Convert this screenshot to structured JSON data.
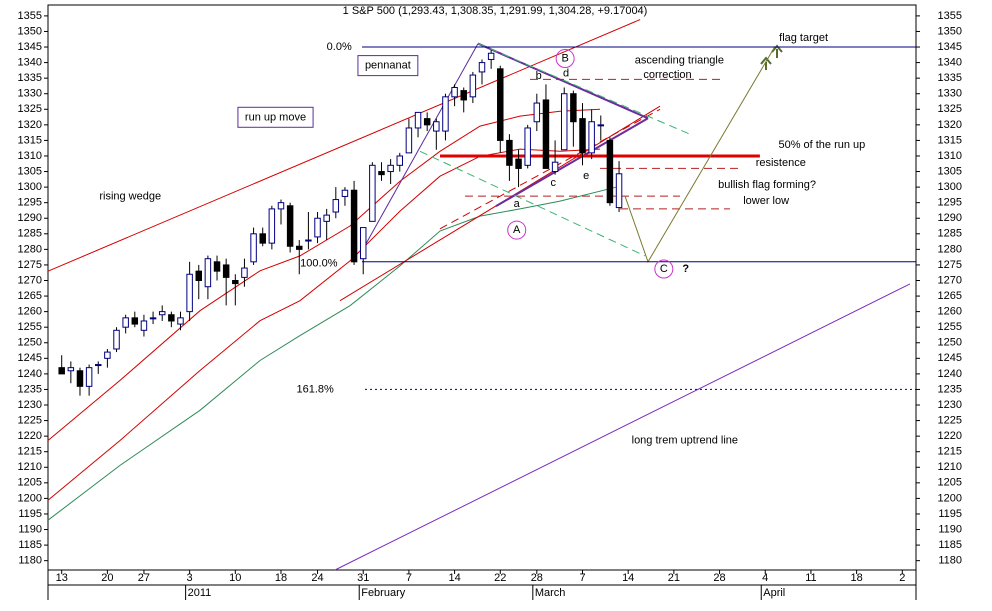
{
  "chart_data": {
    "type": "candlestick",
    "title": "1 S&P 500 (1,293.43, 1,308.35, 1,291.99, 1,304.28, +9.17004)",
    "x": [
      0,
      1,
      2,
      3,
      4,
      5,
      6,
      7,
      8,
      9,
      10,
      11,
      12,
      13,
      14,
      15,
      16,
      17,
      18,
      19,
      20,
      21,
      22,
      23,
      24,
      25,
      26,
      27,
      28,
      29,
      30,
      31,
      32,
      33,
      34,
      35,
      36,
      37,
      38,
      39,
      40,
      41,
      42,
      43,
      44,
      45,
      46,
      47,
      48,
      49,
      50,
      51,
      52,
      53,
      54,
      55,
      56,
      57,
      58,
      59,
      60,
      61
    ],
    "open": [
      1242,
      1241,
      1241,
      1236,
      1243,
      1245,
      1248,
      1255,
      1258,
      1254,
      1258,
      1259,
      1259,
      1256,
      1260,
      1273,
      1268,
      1276,
      1275,
      1270,
      1271,
      1276,
      1285,
      1282,
      1293,
      1294,
      1281,
      1283,
      1284,
      1289,
      1292,
      1297,
      1299,
      1277,
      1289,
      1305,
      1305,
      1307,
      1311,
      1319,
      1322,
      1318,
      1318,
      1329,
      1331,
      1329,
      1337,
      1341,
      1338,
      1315,
      1309,
      1307,
      1321,
      1328,
      1305,
      1312,
      1330,
      1322,
      1311,
      1320,
      1315,
      1293.43
    ],
    "high": [
      1246,
      1244,
      1242,
      1243,
      1244,
      1248,
      1255,
      1259,
      1260,
      1259,
      1260,
      1262,
      1260,
      1260,
      1276,
      1275,
      1278,
      1278,
      1277,
      1272,
      1277,
      1287,
      1287,
      1294,
      1296,
      1295,
      1283,
      1292,
      1292,
      1293,
      1300,
      1300,
      1302,
      1287,
      1308,
      1308,
      1309,
      1311,
      1322,
      1324,
      1324,
      1322,
      1330,
      1333,
      1332,
      1337,
      1341,
      1344,
      1339,
      1317,
      1312,
      1320,
      1330,
      1333,
      1315,
      1332,
      1331,
      1327,
      1325,
      1323,
      1316,
      1308.35
    ],
    "low": [
      1240,
      1237,
      1233,
      1233,
      1240,
      1242,
      1247,
      1253,
      1255,
      1252,
      1256,
      1257,
      1255,
      1254,
      1257,
      1264,
      1264,
      1270,
      1262,
      1262,
      1268,
      1275,
      1281,
      1280,
      1288,
      1279,
      1272,
      1280,
      1282,
      1283,
      1290,
      1294,
      1275,
      1272,
      1289,
      1302,
      1301,
      1305,
      1311,
      1316,
      1318,
      1312,
      1315,
      1326,
      1324,
      1327,
      1333,
      1338,
      1311,
      1302,
      1300,
      1306,
      1318,
      1306,
      1304,
      1312,
      1313,
      1307,
      1309,
      1315,
      1294,
      1291.99
    ],
    "close": [
      1240,
      1242,
      1236,
      1242,
      1243,
      1247,
      1254,
      1258,
      1256,
      1257,
      1258,
      1260,
      1257,
      1258,
      1272,
      1270,
      1277,
      1273,
      1271,
      1269,
      1274,
      1285,
      1282,
      1293,
      1295,
      1281,
      1280,
      1283,
      1290,
      1291,
      1296,
      1299,
      1276,
      1287,
      1307,
      1304,
      1307,
      1310,
      1319,
      1324,
      1320,
      1321,
      1329,
      1332,
      1328,
      1336,
      1340,
      1343,
      1315,
      1307,
      1306,
      1319,
      1327,
      1306,
      1308,
      1330,
      1321,
      1311,
      1321,
      1320,
      1295,
      1304.28
    ],
    "up_color": "#ffffff",
    "down_color": "#000000",
    "body_stroke": "#000080",
    "xlim": [
      -1.5,
      93.5
    ],
    "xticks": [
      {
        "value": 0,
        "label": "13"
      },
      {
        "value": 5,
        "label": "20"
      },
      {
        "value": 9,
        "label": "27"
      },
      {
        "value": 14,
        "label": "3"
      },
      {
        "value": 19,
        "label": "10"
      },
      {
        "value": 24,
        "label": "18"
      },
      {
        "value": 28,
        "label": "24"
      },
      {
        "value": 33,
        "label": "31"
      },
      {
        "value": 38,
        "label": "7"
      },
      {
        "value": 43,
        "label": "14"
      },
      {
        "value": 48,
        "label": "22"
      },
      {
        "value": 52,
        "label": "28"
      },
      {
        "value": 57,
        "label": "7"
      },
      {
        "value": 62,
        "label": "14"
      },
      {
        "value": 67,
        "label": "21"
      },
      {
        "value": 72,
        "label": "28"
      },
      {
        "value": 77,
        "label": "4"
      },
      {
        "value": 82,
        "label": "11"
      },
      {
        "value": 87,
        "label": "18"
      },
      {
        "value": 92,
        "label": "2"
      }
    ],
    "month_labels": [
      {
        "value": 14,
        "label": "2011"
      },
      {
        "value": 33,
        "label": "February"
      },
      {
        "value": 52,
        "label": "March"
      },
      {
        "value": 77,
        "label": "April"
      }
    ],
    "ylim": [
      1177,
      1358.5
    ],
    "yticks": [
      1180,
      1185,
      1190,
      1195,
      1200,
      1205,
      1210,
      1215,
      1220,
      1225,
      1230,
      1235,
      1240,
      1245,
      1250,
      1255,
      1260,
      1265,
      1270,
      1275,
      1280,
      1285,
      1290,
      1295,
      1300,
      1305,
      1310,
      1315,
      1320,
      1325,
      1330,
      1335,
      1340,
      1345,
      1350,
      1355
    ],
    "grid": false,
    "lines": [
      {
        "color": "#d40000",
        "width": 1,
        "points": [
          [
            -1.5,
            1273
          ],
          [
            63.3,
            1353.8
          ]
        ]
      },
      {
        "color": "#d40000",
        "width": 1,
        "points": [
          [
            -1.5,
            1218.6
          ],
          [
            6.38,
            1237.9
          ],
          [
            15.14,
            1260.3
          ],
          [
            21.7,
            1273.1
          ],
          [
            26.08,
            1277.9
          ],
          [
            31.55,
            1287.5
          ],
          [
            37.02,
            1301.9
          ],
          [
            41.4,
            1311.5
          ],
          [
            45.78,
            1319.6
          ],
          [
            50.16,
            1322.8
          ],
          [
            54.54,
            1324.4
          ],
          [
            58.91,
            1325
          ]
        ]
      },
      {
        "color": "#d40000",
        "width": 1,
        "points": [
          [
            -1.5,
            1199.4
          ],
          [
            6.38,
            1218.6
          ],
          [
            15.14,
            1241.1
          ],
          [
            21.7,
            1257.1
          ],
          [
            26.08,
            1263.5
          ],
          [
            31.55,
            1276.3
          ],
          [
            37.02,
            1292.3
          ],
          [
            41.4,
            1303.5
          ],
          [
            45.78,
            1309.9
          ],
          [
            50.16,
            1312.2
          ],
          [
            54.54,
            1311.5
          ],
          [
            58.91,
            1312.2
          ]
        ]
      },
      {
        "color": "#2e8b57",
        "width": 1,
        "points": [
          [
            -1.5,
            1193
          ],
          [
            6.38,
            1210.6
          ],
          [
            15.14,
            1228.3
          ],
          [
            21.7,
            1244.3
          ],
          [
            26.08,
            1252.3
          ],
          [
            31.55,
            1261.9
          ],
          [
            37.02,
            1274.7
          ],
          [
            41.4,
            1285.9
          ],
          [
            45.78,
            1290.7
          ],
          [
            50.16,
            1293
          ],
          [
            54.54,
            1295.5
          ],
          [
            61.1,
            1300.3
          ]
        ]
      },
      {
        "color": "#d40000",
        "width": 1,
        "points": [
          [
            30.46,
            1263.5
          ],
          [
            65.48,
            1326
          ]
        ]
      },
      {
        "color": "#d40000",
        "width": 1,
        "dash": "dashed",
        "points": [
          [
            41.4,
            1286.6
          ],
          [
            65.48,
            1325
          ]
        ]
      },
      {
        "color": "#5b2c9e",
        "width": 1,
        "points": [
          [
            32.87,
            1279.5
          ],
          [
            45.56,
            1346.1
          ]
        ]
      },
      {
        "color": "#6a2c9e",
        "width": 2,
        "points": [
          [
            45.56,
            1346.1
          ],
          [
            64.17,
            1322.1
          ]
        ]
      },
      {
        "color": "#6a2c9e",
        "width": 2,
        "points": [
          [
            47.53,
            1293.9
          ],
          [
            64.17,
            1322.1
          ]
        ]
      },
      {
        "color": "#3cb371",
        "width": 1,
        "dash": "dashed",
        "points": [
          [
            39.21,
            1311.5
          ],
          [
            63.84,
            1277.9
          ]
        ]
      },
      {
        "color": "#3cb371",
        "width": 1,
        "dash": "dashed",
        "points": [
          [
            45.56,
            1346.1
          ],
          [
            68.76,
            1317
          ]
        ]
      },
      {
        "color": "#e00000",
        "width": 3,
        "points": [
          [
            41.4,
            1310
          ],
          [
            76.42,
            1310
          ]
        ]
      },
      {
        "color": "#b22222",
        "width": 1,
        "dash": "dashed",
        "points": [
          [
            51.25,
            1334.6
          ],
          [
            72.05,
            1334.6
          ]
        ]
      },
      {
        "color": "#b22222",
        "width": 1,
        "dash": "dashed",
        "points": [
          [
            44.14,
            1297.1
          ],
          [
            67.67,
            1297.1
          ]
        ]
      },
      {
        "color": "#b22222",
        "width": 1,
        "dash": "dashed",
        "points": [
          [
            58.91,
            1306
          ],
          [
            74.23,
            1306
          ]
        ]
      },
      {
        "color": "#b22222",
        "width": 1,
        "dash": "dashed",
        "points": [
          [
            61.1,
            1293
          ],
          [
            73.14,
            1293
          ]
        ]
      },
      {
        "color": "#7a7a30",
        "width": 1,
        "points": [
          [
            61.65,
            1297.1
          ],
          [
            64.17,
            1276
          ],
          [
            78.07,
            1345.2
          ]
        ]
      },
      {
        "color": "#7b2cbf",
        "width": 1,
        "points": [
          [
            29.91,
            1177
          ],
          [
            92.84,
            1268.9
          ]
        ]
      },
      {
        "color": "#000080",
        "width": 1,
        "points": [
          [
            32.87,
            1345
          ],
          [
            93.5,
            1345
          ]
        ]
      },
      {
        "color": "#000080",
        "width": 1,
        "points": [
          [
            32.87,
            1276
          ],
          [
            93.5,
            1276
          ]
        ]
      },
      {
        "color": "#000080",
        "width": 1,
        "dash": "dotted",
        "points": [
          [
            33.19,
            1235
          ],
          [
            93.5,
            1235
          ]
        ]
      }
    ],
    "annotations": [
      {
        "text": "0.0%",
        "x": 29.0,
        "y": 1345,
        "color": "#000080",
        "anchor": "start"
      },
      {
        "text": "100.0%",
        "x": 26.1,
        "y": 1275.5,
        "color": "#000080",
        "anchor": "start"
      },
      {
        "text": "161.8%",
        "x": 25.7,
        "y": 1235,
        "color": "#000080",
        "anchor": "start"
      },
      {
        "text": "pennanat",
        "x": 35.7,
        "y": 1339,
        "color": "#5b2c9e",
        "anchor": "middle",
        "box": true
      },
      {
        "text": "run up move",
        "x": 23.4,
        "y": 1322.4,
        "color": "#5b2c9e",
        "anchor": "middle",
        "box": true
      },
      {
        "text": "rising wedge",
        "x": 7.5,
        "y": 1297,
        "color": "#c00000",
        "anchor": "middle"
      },
      {
        "text": "ascending triangle",
        "x": 67.6,
        "y": 1340.7,
        "color": "#b22222",
        "anchor": "middle"
      },
      {
        "text": "correction",
        "x": 66.3,
        "y": 1336,
        "color": "#b22222",
        "anchor": "middle"
      },
      {
        "text": "50% of the run up",
        "x": 83.2,
        "y": 1313.5,
        "color": "#d40000",
        "anchor": "middle"
      },
      {
        "text": "resistence",
        "x": 78.7,
        "y": 1307.7,
        "color": "#b22222",
        "anchor": "middle"
      },
      {
        "text": "bullish flag forming?",
        "x": 77.2,
        "y": 1300.7,
        "color": "#6b6b23",
        "anchor": "middle"
      },
      {
        "text": "lower low",
        "x": 77.1,
        "y": 1295.5,
        "color": "#b22222",
        "anchor": "middle"
      },
      {
        "text": "flag target",
        "x": 81.2,
        "y": 1347.8,
        "color": "#6b6b23",
        "anchor": "middle"
      },
      {
        "text": "long trem uptrend line",
        "x": 68.2,
        "y": 1218.6,
        "color": "#5b2c9e",
        "anchor": "middle"
      },
      {
        "text": "a",
        "x": 49.8,
        "y": 1294.6,
        "color": "#b030b0",
        "anchor": "middle"
      },
      {
        "text": "b",
        "x": 52.2,
        "y": 1335.6,
        "color": "#b030b0",
        "anchor": "middle"
      },
      {
        "text": "c",
        "x": 53.8,
        "y": 1301.3,
        "color": "#b030b0",
        "anchor": "middle"
      },
      {
        "text": "d",
        "x": 55.2,
        "y": 1336.5,
        "color": "#b030b0",
        "anchor": "middle"
      },
      {
        "text": "e",
        "x": 57.4,
        "y": 1303.5,
        "color": "#b030b0",
        "anchor": "middle"
      },
      {
        "text": "A",
        "x": 49.8,
        "y": 1286.2,
        "color": "#cc33cc",
        "anchor": "middle",
        "circle": true
      },
      {
        "text": "B",
        "x": 55.1,
        "y": 1341.3,
        "color": "#cc33cc",
        "anchor": "middle",
        "circle": true
      },
      {
        "text": "C",
        "x": 65.9,
        "y": 1273.7,
        "color": "#cc33cc",
        "anchor": "middle",
        "circle": true
      },
      {
        "text": "?",
        "x": 68.3,
        "y": 1273.7,
        "color": "#cc33cc",
        "anchor": "middle",
        "bold": true
      }
    ]
  }
}
